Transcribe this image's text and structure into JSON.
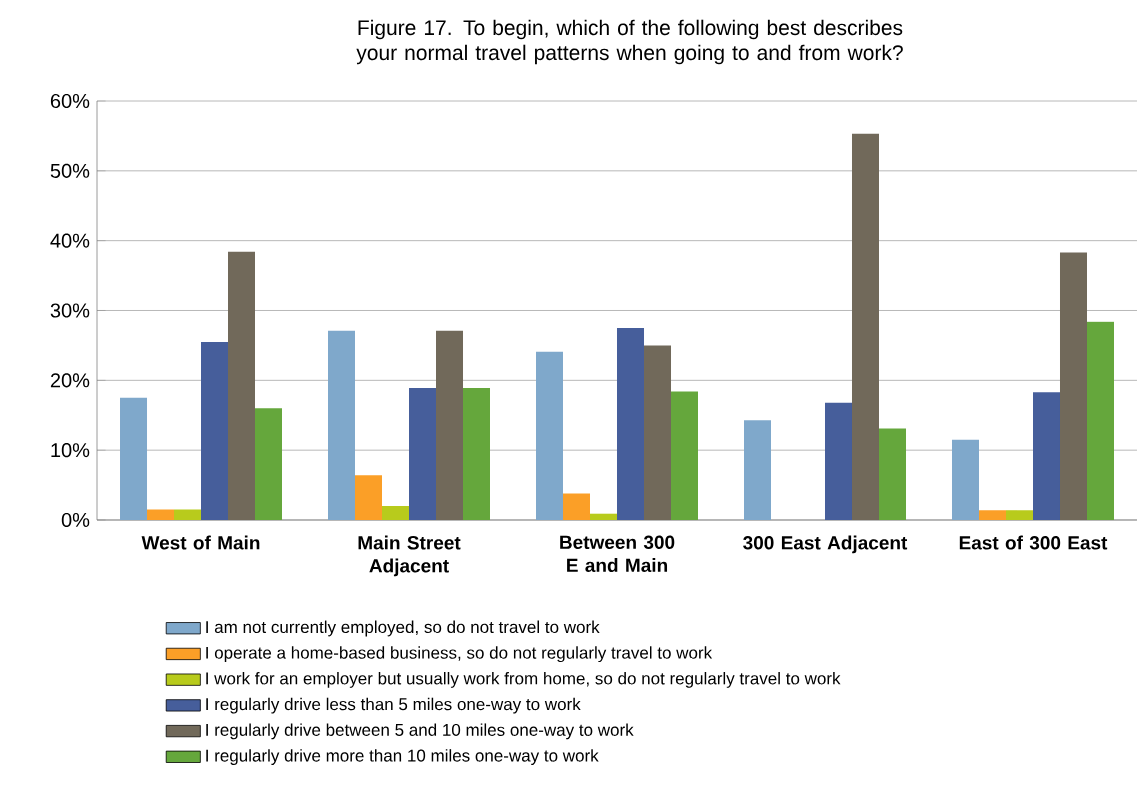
{
  "chart_data": {
    "type": "bar",
    "title": "Figure 17. To begin, which of the following best describes your normal travel patterns when going to and from work?",
    "categories": [
      "West of Main",
      "Main Street Adjacent",
      "Between 300 E and Main",
      "300 East Adjacent",
      "East of 300 East"
    ],
    "series": [
      {
        "name": "I am not currently employed, so do not travel to work",
        "color": "#7fa8cb",
        "values": [
          17.5,
          27.1,
          24.1,
          14.3,
          11.5
        ]
      },
      {
        "name": "I operate a home-based business, so do not regularly travel to work",
        "color": "#fb9f27",
        "values": [
          1.5,
          6.4,
          3.8,
          0,
          1.4
        ]
      },
      {
        "name": "I work for an employer but usually work from home, so do not regularly travel to work",
        "color": "#b8cb1c",
        "values": [
          1.5,
          2.0,
          0.9,
          0,
          1.4
        ]
      },
      {
        "name": "I regularly drive less than 5 miles one-way to work",
        "color": "#465e9b",
        "values": [
          25.5,
          18.9,
          27.5,
          16.8,
          18.3
        ]
      },
      {
        "name": "I regularly drive between 5 and 10 miles one-way to work",
        "color": "#71695a",
        "values": [
          38.4,
          27.1,
          25.0,
          55.3,
          38.3
        ]
      },
      {
        "name": "I regularly drive more than 10 miles one-way to work",
        "color": "#65a73c",
        "values": [
          16.0,
          18.9,
          18.4,
          13.1,
          28.4
        ]
      }
    ],
    "ylim": [
      0,
      60
    ],
    "yticks": [
      {
        "value": 0,
        "label": "0%"
      },
      {
        "value": 10,
        "label": "10%"
      },
      {
        "value": 20,
        "label": "20%"
      },
      {
        "value": 30,
        "label": "30%"
      },
      {
        "value": 40,
        "label": "40%"
      },
      {
        "value": 50,
        "label": "50%"
      },
      {
        "value": 60,
        "label": "60%"
      }
    ],
    "grid": "y",
    "legend": "bottom"
  }
}
